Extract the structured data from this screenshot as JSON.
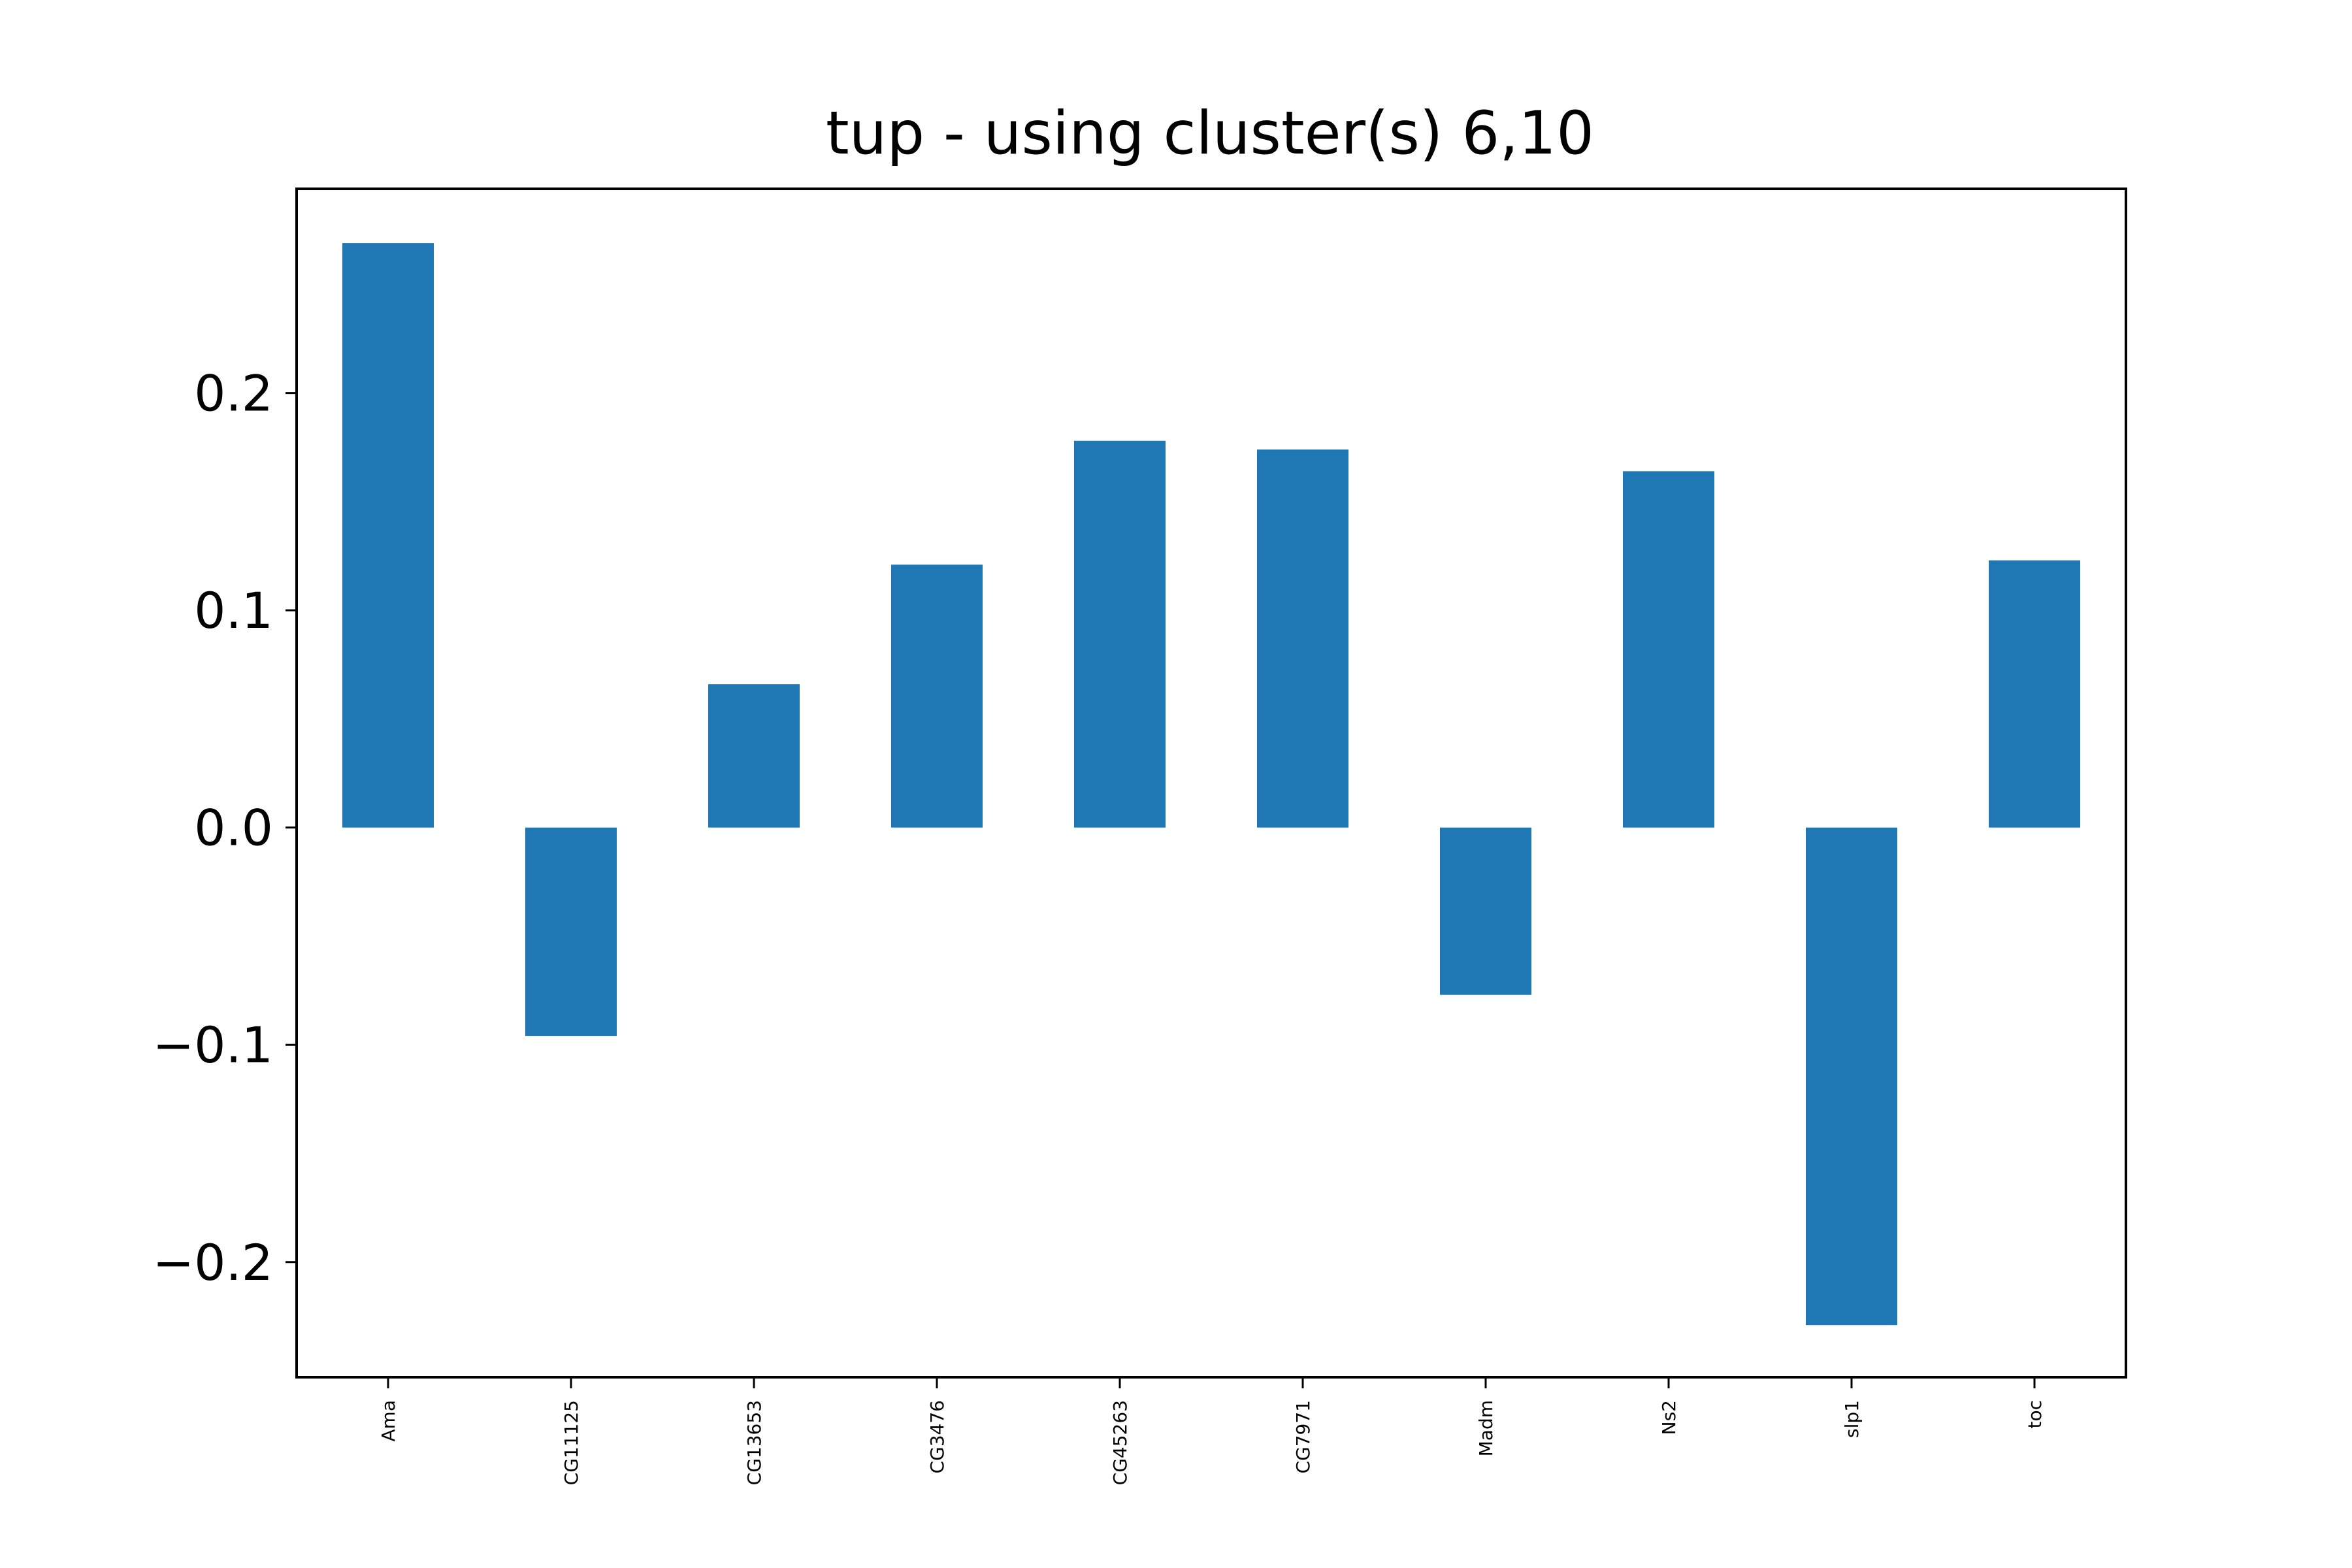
{
  "chart_data": {
    "type": "bar",
    "title": "tup - using cluster(s) 6,10",
    "xlabel": "",
    "ylabel": "",
    "categories": [
      "Ama",
      "CG11125",
      "CG13653",
      "CG3476",
      "CG45263",
      "CG7971",
      "Madm",
      "Ns2",
      "slp1",
      "toc"
    ],
    "values": [
      0.269,
      -0.096,
      0.066,
      0.121,
      0.178,
      0.174,
      -0.077,
      0.164,
      -0.229,
      0.123
    ],
    "ylim": [
      -0.253,
      0.294
    ],
    "yticks": [
      -0.2,
      -0.1,
      0.0,
      0.1,
      0.2
    ],
    "ytick_labels": [
      "−0.2",
      "−0.1",
      "0.0",
      "0.1",
      "0.2"
    ],
    "grid": false,
    "bar_color": "#1f77b4"
  }
}
